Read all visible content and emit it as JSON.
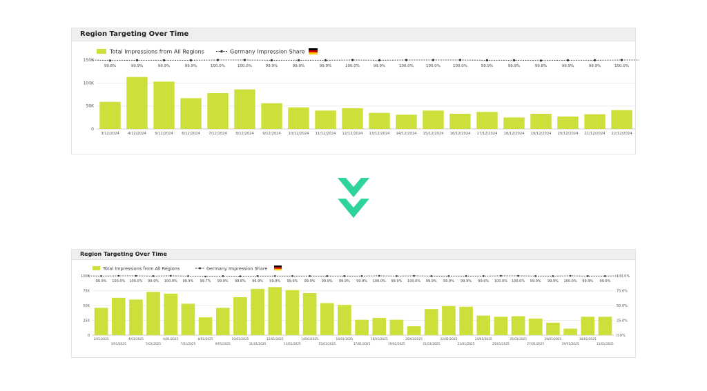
{
  "colors": {
    "bar": "#cddf3a",
    "line": "#333333",
    "grid": "#ececec",
    "arrow": "#2fd49b",
    "axis_text": "#555555"
  },
  "arrow_icon": "double-chevron-down-icon",
  "flag_icon": "germany-flag-icon",
  "charts": {
    "before": {
      "title": "Region Targeting Over Time",
      "legend_bar": "Total Impressions from All Regions",
      "legend_line": "Germany Impression Share"
    },
    "after": {
      "title": "Region Targeting Over Time",
      "legend_bar": "Total Impressions from All Regions",
      "legend_line": "Germany Impression Share"
    }
  },
  "chart_data": [
    {
      "type": "bar",
      "title": "Region Targeting Over Time",
      "xlabel": "",
      "ylabel": "",
      "ylim": [
        0,
        150000
      ],
      "y_ticks": [
        "0",
        "50K",
        "100K",
        "150K"
      ],
      "categories": [
        "3/12/2024",
        "4/12/2024",
        "5/12/2024",
        "6/12/2024",
        "7/12/2024",
        "8/12/2024",
        "9/12/2024",
        "10/12/2024",
        "11/12/2024",
        "12/12/2024",
        "13/12/2024",
        "14/12/2024",
        "15/12/2024",
        "16/12/2024",
        "17/12/2024",
        "18/12/2024",
        "19/12/2024",
        "20/12/2024",
        "21/12/2024",
        "22/12/2024"
      ],
      "series": [
        {
          "name": "Total Impressions from All Regions",
          "values": [
            59000,
            113000,
            103000,
            67000,
            78000,
            86000,
            56000,
            47000,
            40000,
            45000,
            35000,
            31000,
            40000,
            33000,
            37000,
            25000,
            33000,
            27000,
            32000,
            41000
          ]
        },
        {
          "name": "Germany Impression Share",
          "values": [
            99.8,
            99.9,
            99.9,
            99.9,
            100.0,
            100.0,
            99.9,
            99.9,
            99.9,
            100.0,
            99.9,
            100.0,
            100.0,
            100.0,
            99.9,
            99.9,
            99.8,
            99.9,
            99.9,
            100.0
          ],
          "labels": [
            "99.8%",
            "99.9%",
            "99.9%",
            "99.9%",
            "100.0%",
            "100.0%",
            "99.9%",
            "99.9%",
            "99.9%",
            "100.0%",
            "99.9%",
            "100.0%",
            "100.0%",
            "100.0%",
            "99.9%",
            "99.9%",
            "99.8%",
            "99.9%",
            "99.9%",
            "100.0%"
          ]
        }
      ],
      "grid": true,
      "legend": "top-left"
    },
    {
      "type": "bar",
      "title": "Region Targeting Over Time",
      "xlabel": "",
      "ylabel": "",
      "ylim": [
        0,
        100000
      ],
      "y_ticks": [
        "0",
        "25K",
        "50K",
        "75K",
        "100K"
      ],
      "y2_ticks": [
        "0.0%",
        "25.0%",
        "50.0%",
        "75.0%",
        "100.0%"
      ],
      "categories": [
        "2/01/2025",
        "3/01/2025",
        "4/01/2025",
        "5/01/2025",
        "6/01/2025",
        "7/01/2025",
        "8/01/2025",
        "9/01/2025",
        "10/01/2025",
        "11/01/2025",
        "12/01/2025",
        "13/01/2025",
        "14/01/2025",
        "15/01/2025",
        "16/01/2025",
        "17/01/2025",
        "18/01/2025",
        "19/01/2025",
        "20/01/2025",
        "21/01/2025",
        "22/01/2025",
        "23/01/2025",
        "24/01/2025",
        "25/01/2025",
        "26/01/2025",
        "27/01/2025",
        "28/01/2025",
        "29/01/2025",
        "30/01/2025",
        "31/01/2025"
      ],
      "series": [
        {
          "name": "Total Impressions from All Regions",
          "values": [
            46000,
            63000,
            60000,
            73000,
            70000,
            53000,
            30000,
            46000,
            64000,
            78000,
            81000,
            76000,
            71000,
            54000,
            51000,
            26000,
            29000,
            26000,
            15000,
            44000,
            49000,
            48000,
            33000,
            31000,
            32000,
            28000,
            21000,
            11000,
            31000,
            31000
          ]
        },
        {
          "name": "Germany Impression Share",
          "values": [
            99.9,
            100.0,
            100.0,
            99.9,
            100.0,
            99.9,
            99.7,
            99.9,
            99.8,
            99.9,
            99.9,
            99.9,
            99.9,
            99.9,
            99.9,
            99.9,
            100.0,
            99.9,
            100.0,
            99.9,
            99.9,
            99.9,
            99.9,
            100.0,
            100.0,
            99.9,
            99.9,
            100.0,
            99.9,
            99.9
          ],
          "labels": [
            "99.9%",
            "100.0%",
            "100.0%",
            "99.9%",
            "100.0%",
            "99.9%",
            "99.7%",
            "99.9%",
            "99.8%",
            "99.9%",
            "99.9%",
            "99.9%",
            "99.9%",
            "99.9%",
            "99.9%",
            "99.9%",
            "100.0%",
            "99.9%",
            "100.0%",
            "99.9%",
            "99.9%",
            "99.9%",
            "99.9%",
            "100.0%",
            "100.0%",
            "99.9%",
            "99.9%",
            "100.0%",
            "99.9%",
            "99.9%"
          ]
        }
      ],
      "grid": true,
      "legend": "top-left"
    }
  ]
}
